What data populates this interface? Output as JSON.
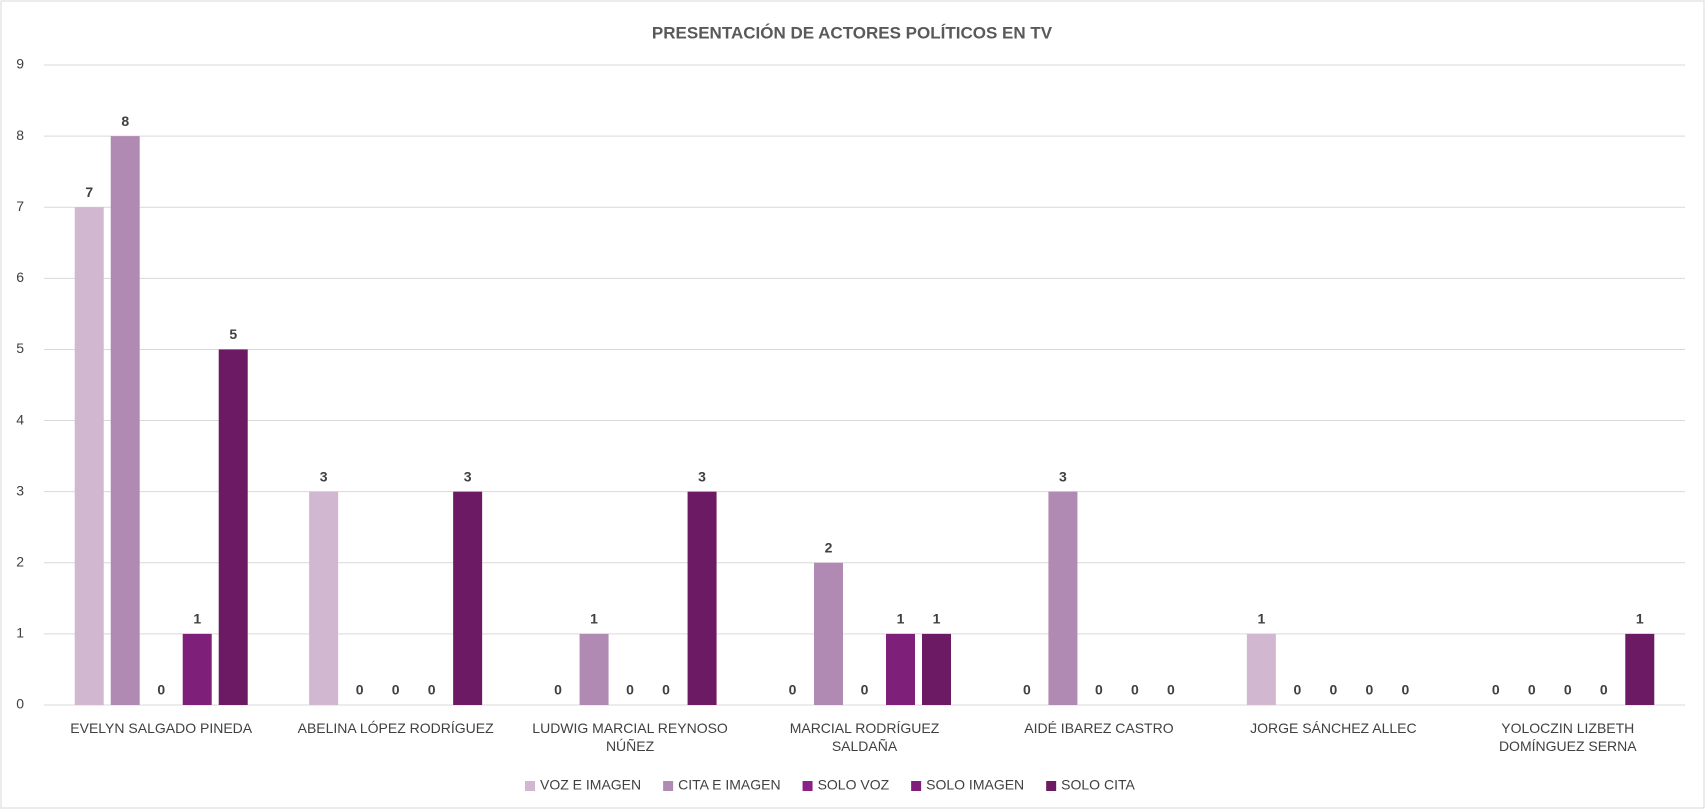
{
  "chart_data": {
    "type": "bar",
    "title": "PRESENTACIÓN DE ACTORES POLÍTICOS EN TV",
    "categories": [
      "EVELYN SALGADO PINEDA",
      "ABELINA LÓPEZ RODRÍGUEZ",
      "LUDWIG MARCIAL REYNOSO NÚÑEZ",
      "MARCIAL RODRÍGUEZ SALDAÑA",
      "AIDÉ IBAREZ CASTRO",
      "JORGE SÁNCHEZ ALLEC",
      "YOLOCZIN LIZBETH DOMÍNGUEZ SERNA"
    ],
    "series": [
      {
        "name": "VOZ E IMAGEN",
        "color": "#d1b7d0",
        "values": [
          7,
          3,
          0,
          0,
          0,
          1,
          0
        ]
      },
      {
        "name": "CITA E IMAGEN",
        "color": "#b18ab3",
        "values": [
          8,
          0,
          1,
          2,
          3,
          0,
          0
        ]
      },
      {
        "name": "SOLO VOZ",
        "color": "#8a2387",
        "values": [
          0,
          0,
          0,
          0,
          0,
          0,
          0
        ]
      },
      {
        "name": "SOLO IMAGEN",
        "color": "#7e1f7a",
        "values": [
          1,
          0,
          0,
          1,
          0,
          0,
          0
        ]
      },
      {
        "name": "SOLO CITA",
        "color": "#6b1a63",
        "values": [
          5,
          3,
          3,
          1,
          0,
          0,
          1
        ]
      }
    ],
    "ylim": [
      0,
      9
    ],
    "yticks": [
      0,
      1,
      2,
      3,
      4,
      5,
      6,
      7,
      8,
      9
    ],
    "grid": true,
    "legend": "bottom"
  }
}
